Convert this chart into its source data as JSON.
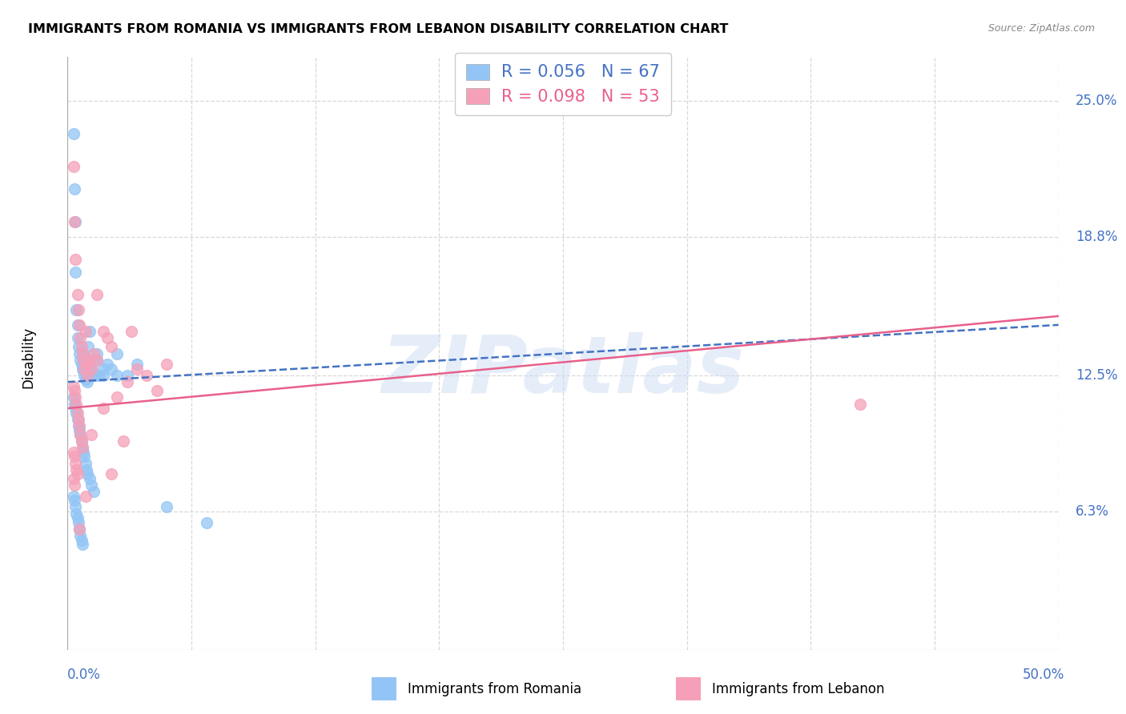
{
  "title": "IMMIGRANTS FROM ROMANIA VS IMMIGRANTS FROM LEBANON DISABILITY CORRELATION CHART",
  "source": "Source: ZipAtlas.com",
  "ylabel": "Disability",
  "ytick_values": [
    6.3,
    12.5,
    18.8,
    25.0
  ],
  "ytick_labels": [
    "6.3%",
    "12.5%",
    "18.8%",
    "25.0%"
  ],
  "xmin": 0.0,
  "xmax": 50.0,
  "ymin": 0.0,
  "ymax": 27.0,
  "legend_romania_r": "R = 0.056",
  "legend_romania_n": "N = 67",
  "legend_lebanon_r": "R = 0.098",
  "legend_lebanon_n": "N = 53",
  "romania_color": "#92c5f5",
  "lebanon_color": "#f5a0b8",
  "romania_line_color": "#4472c4",
  "lebanon_line_color": "#e8608a",
  "romania_trend": [
    12.2,
    14.8
  ],
  "lebanon_trend": [
    11.0,
    15.2
  ],
  "watermark": "ZIPatlas",
  "background_color": "#ffffff",
  "grid_color": "#d8d8d8",
  "romania_x": [
    0.3,
    0.35,
    0.4,
    0.4,
    0.45,
    0.5,
    0.5,
    0.55,
    0.6,
    0.65,
    0.7,
    0.75,
    0.8,
    0.8,
    0.85,
    0.9,
    0.9,
    0.95,
    1.0,
    1.0,
    1.05,
    1.1,
    1.15,
    1.2,
    1.3,
    1.4,
    1.5,
    1.6,
    1.8,
    2.0,
    2.2,
    2.5,
    0.3,
    0.35,
    0.4,
    0.45,
    0.5,
    0.55,
    0.6,
    0.65,
    0.7,
    0.75,
    0.8,
    0.85,
    0.9,
    0.95,
    1.0,
    1.1,
    1.2,
    1.3,
    0.3,
    0.35,
    0.4,
    0.45,
    0.5,
    0.55,
    0.6,
    0.65,
    0.7,
    0.75,
    1.5,
    1.8,
    2.5,
    3.0,
    3.5,
    5.0,
    7.0
  ],
  "romania_y": [
    23.5,
    21.0,
    19.5,
    17.2,
    15.5,
    14.8,
    14.2,
    13.8,
    13.5,
    13.2,
    13.0,
    12.8,
    12.7,
    13.5,
    12.5,
    12.3,
    13.0,
    12.5,
    12.2,
    13.2,
    13.8,
    14.5,
    13.0,
    12.8,
    12.5,
    12.5,
    13.5,
    12.5,
    12.5,
    13.0,
    12.8,
    12.5,
    11.5,
    11.2,
    11.0,
    10.8,
    10.5,
    10.2,
    10.0,
    9.8,
    9.5,
    9.2,
    9.0,
    8.8,
    8.5,
    8.2,
    8.0,
    7.8,
    7.5,
    7.2,
    7.0,
    6.8,
    6.5,
    6.2,
    6.0,
    5.8,
    5.5,
    5.2,
    5.0,
    4.8,
    13.2,
    12.8,
    13.5,
    12.5,
    13.0,
    6.5,
    5.8
  ],
  "lebanon_x": [
    0.3,
    0.35,
    0.4,
    0.5,
    0.55,
    0.6,
    0.65,
    0.7,
    0.75,
    0.8,
    0.85,
    0.9,
    0.95,
    1.0,
    1.1,
    1.2,
    1.3,
    1.5,
    1.8,
    2.0,
    2.2,
    0.3,
    0.35,
    0.4,
    0.45,
    0.5,
    0.55,
    0.6,
    0.65,
    0.7,
    0.75,
    0.3,
    0.35,
    0.4,
    0.45,
    0.5,
    0.3,
    0.35,
    1.5,
    2.5,
    3.0,
    3.5,
    4.0,
    4.5,
    5.0,
    2.8,
    2.2,
    1.8,
    0.9,
    1.2,
    3.2,
    40.0,
    0.6
  ],
  "lebanon_y": [
    22.0,
    19.5,
    17.8,
    16.2,
    15.5,
    14.8,
    14.2,
    13.8,
    13.5,
    13.2,
    12.8,
    14.5,
    13.0,
    12.5,
    13.2,
    12.8,
    13.5,
    16.2,
    14.5,
    14.2,
    13.8,
    12.0,
    11.8,
    11.5,
    11.2,
    10.8,
    10.5,
    10.2,
    9.8,
    9.5,
    9.2,
    9.0,
    8.8,
    8.5,
    8.2,
    8.0,
    7.8,
    7.5,
    13.2,
    11.5,
    12.2,
    12.8,
    12.5,
    11.8,
    13.0,
    9.5,
    8.0,
    11.0,
    7.0,
    9.8,
    14.5,
    11.2,
    5.5
  ]
}
